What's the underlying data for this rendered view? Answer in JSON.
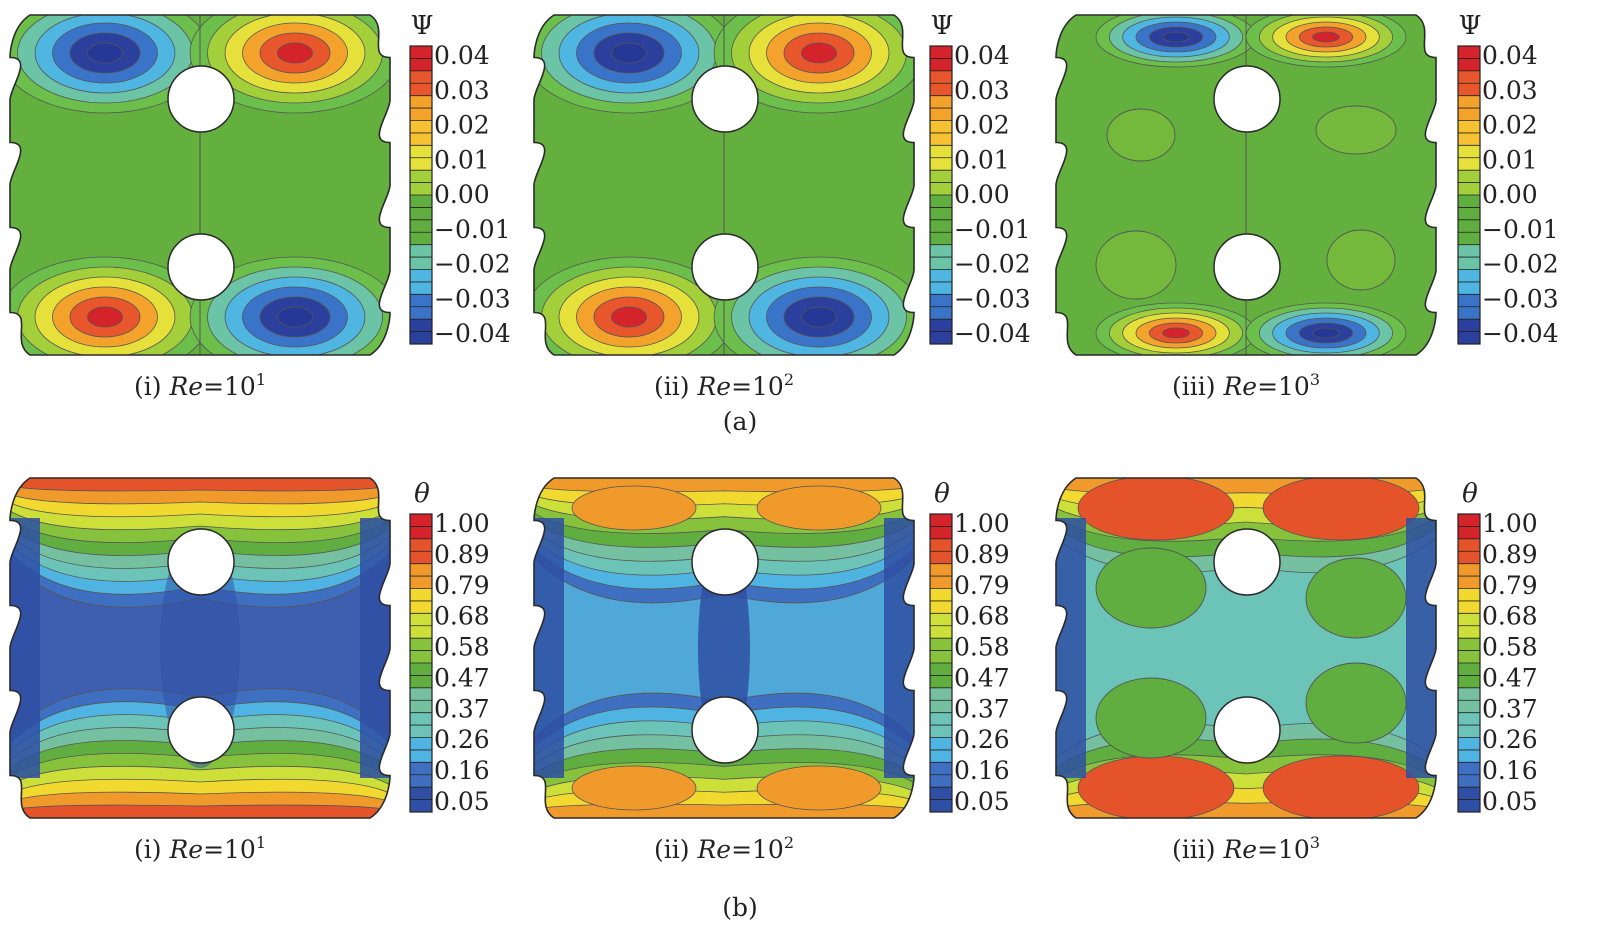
{
  "colors": {
    "psi_scale": [
      "#2b3f9c",
      "#3a74c8",
      "#4fb6e2",
      "#6cc4a6",
      "#5fae3f",
      "#5fae3f",
      "#a3cf3a",
      "#e6e13a",
      "#f3a22c",
      "#e8562b",
      "#d4232a"
    ],
    "theta_scale": [
      "#2e4fa3",
      "#3e6fc0",
      "#4fb4e2",
      "#6cc4b8",
      "#74c0a0",
      "#5fae3f",
      "#86c23c",
      "#cde03a",
      "#f2d92f",
      "#f19a2c",
      "#e5532a",
      "#d4232a"
    ],
    "outline": "#2a2a2a",
    "contour": "#555555"
  },
  "rows": [
    {
      "label": "(a)",
      "quantity": "Ψ",
      "colorbar": {
        "title": "Ψ",
        "ticks": [
          "0.04",
          "0.03",
          "0.02",
          "0.01",
          "0.00",
          "−0.01",
          "−0.02",
          "−0.03",
          "−0.04"
        ]
      },
      "panels": [
        {
          "roman": "(i)",
          "re_label": "Re",
          "re_value": "10",
          "re_exp": "1",
          "style": "psi1"
        },
        {
          "roman": "(ii)",
          "re_label": "Re",
          "re_value": "10",
          "re_exp": "2",
          "style": "psi2"
        },
        {
          "roman": "(iii)",
          "re_label": "Re",
          "re_value": "10",
          "re_exp": "3",
          "style": "psi3"
        }
      ]
    },
    {
      "label": "(b)",
      "quantity": "θ",
      "colorbar": {
        "title": "θ",
        "ticks": [
          "1.00",
          "0.89",
          "0.79",
          "0.68",
          "0.58",
          "0.47",
          "0.37",
          "0.26",
          "0.16",
          "0.05"
        ]
      },
      "panels": [
        {
          "roman": "(i)",
          "re_label": "Re",
          "re_value": "10",
          "re_exp": "1",
          "style": "th1"
        },
        {
          "roman": "(ii)",
          "re_label": "Re",
          "re_value": "10",
          "re_exp": "2",
          "style": "th2"
        },
        {
          "roman": "(iii)",
          "re_label": "Re",
          "re_value": "10",
          "re_exp": "3",
          "style": "th3"
        }
      ]
    }
  ]
}
